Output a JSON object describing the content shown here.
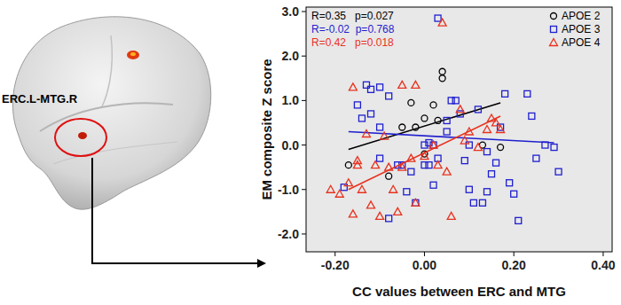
{
  "chart_data": {
    "type": "scatter",
    "x_label": "CC values between ERC and MTG",
    "y_label": "EM composite Z score",
    "xlim": [
      -0.265,
      0.42
    ],
    "ylim": [
      -2.4,
      3.1
    ],
    "xticks": [
      {
        "value": -0.2,
        "label": "-0.20"
      },
      {
        "value": 0,
        "label": "0.00"
      },
      {
        "value": 0.2,
        "label": "0.20"
      },
      {
        "value": 0.4,
        "label": "0.40"
      }
    ],
    "yticks": [
      {
        "value": -2,
        "label": "-2.0"
      },
      {
        "value": -1,
        "label": "-1.0"
      },
      {
        "value": 0,
        "label": "0.0"
      },
      {
        "value": 1,
        "label": "1.0"
      },
      {
        "value": 2,
        "label": "2.0"
      },
      {
        "value": 3,
        "label": "3.0"
      }
    ],
    "grid": false,
    "legend": "top-right",
    "annotations": [
      {
        "text": "R=0.35   p=0.027",
        "color": "#000000"
      },
      {
        "text": "R=-0.02  p=0.768",
        "color": "#1f1fd0"
      },
      {
        "text": "R=0.42   p=0.018",
        "color": "#e8321e"
      }
    ],
    "series": [
      {
        "name": "APOE 2",
        "color": "#000000",
        "marker": "circle",
        "x": [
          -0.17,
          -0.08,
          -0.05,
          -0.03,
          0.0,
          0.0,
          0.02,
          0.03,
          0.04,
          0.04,
          0.17,
          -0.02,
          0.13
        ],
        "values": [
          -0.45,
          -0.7,
          0.4,
          0.95,
          0.6,
          -0.2,
          0.9,
          0.55,
          1.65,
          1.5,
          -0.05,
          0.4,
          0.0
        ],
        "fit_x": [
          -0.17,
          0.17
        ],
        "fit_y": [
          -0.1,
          0.95
        ]
      },
      {
        "name": "APOE 3",
        "color": "#1f1fd0",
        "marker": "square",
        "x": [
          0.03,
          -0.13,
          -0.12,
          -0.1,
          -0.08,
          -0.15,
          -0.14,
          -0.12,
          -0.1,
          -0.18,
          -0.06,
          -0.05,
          -0.03,
          -0.08,
          -0.1,
          0.0,
          0.01,
          0.02,
          0.0,
          0.01,
          0.02,
          0.03,
          0.05,
          0.05,
          0.06,
          0.07,
          0.08,
          0.1,
          0.1,
          0.11,
          0.13,
          0.12,
          0.14,
          0.14,
          0.15,
          0.16,
          0.17,
          0.18,
          0.19,
          0.2,
          0.21,
          0.23,
          0.24,
          0.25,
          0.27,
          0.29,
          0.3,
          -0.04,
          -0.02,
          0.09
        ],
        "values": [
          2.85,
          1.35,
          1.25,
          1.3,
          1.1,
          0.9,
          0.6,
          0.7,
          0.4,
          -0.95,
          -0.45,
          -0.45,
          -0.6,
          -1.65,
          -0.3,
          0.0,
          0.05,
          0.0,
          -0.45,
          -0.45,
          -0.9,
          -0.3,
          0.3,
          0.55,
          1.0,
          1.0,
          0.7,
          0.0,
          -1.0,
          -1.3,
          -1.3,
          0.8,
          -0.15,
          -1.05,
          -0.65,
          -0.4,
          0.4,
          1.15,
          -0.85,
          -1.1,
          -1.7,
          1.15,
          0.65,
          -0.3,
          0.0,
          -0.05,
          -0.6,
          -1.05,
          -1.3,
          -0.35
        ],
        "fit_x": [
          -0.17,
          0.29
        ],
        "fit_y": [
          0.3,
          0.05
        ]
      },
      {
        "name": "APOE 4",
        "color": "#e8321e",
        "marker": "triangle",
        "x": [
          -0.21,
          -0.19,
          -0.17,
          -0.16,
          -0.15,
          -0.15,
          -0.14,
          -0.13,
          -0.12,
          -0.11,
          -0.1,
          -0.09,
          -0.08,
          -0.07,
          -0.06,
          -0.05,
          -0.05,
          -0.03,
          -0.02,
          0.0,
          0.02,
          0.03,
          0.04,
          0.05,
          0.06,
          0.08,
          0.09,
          0.1,
          0.12,
          0.14,
          0.15,
          0.16,
          0.17,
          -0.16,
          -0.02
        ],
        "values": [
          -1.0,
          -1.1,
          -0.85,
          -1.55,
          -0.35,
          -0.45,
          -1.0,
          0.25,
          -1.35,
          -0.45,
          -1.6,
          0.2,
          -0.5,
          -1.0,
          -1.5,
          1.35,
          -0.5,
          -0.3,
          -1.3,
          -0.25,
          0.0,
          -0.45,
          2.75,
          -0.6,
          -1.6,
          0.8,
          0.1,
          0.3,
          -0.05,
          0.35,
          0.6,
          0.5,
          0.35,
          1.3,
          1.35
        ],
        "fit_x": [
          -0.17,
          0.17
        ],
        "fit_y": [
          -1.0,
          0.65
        ]
      }
    ]
  },
  "brain_panel": {
    "label": "ERC.L-MTG.R"
  }
}
